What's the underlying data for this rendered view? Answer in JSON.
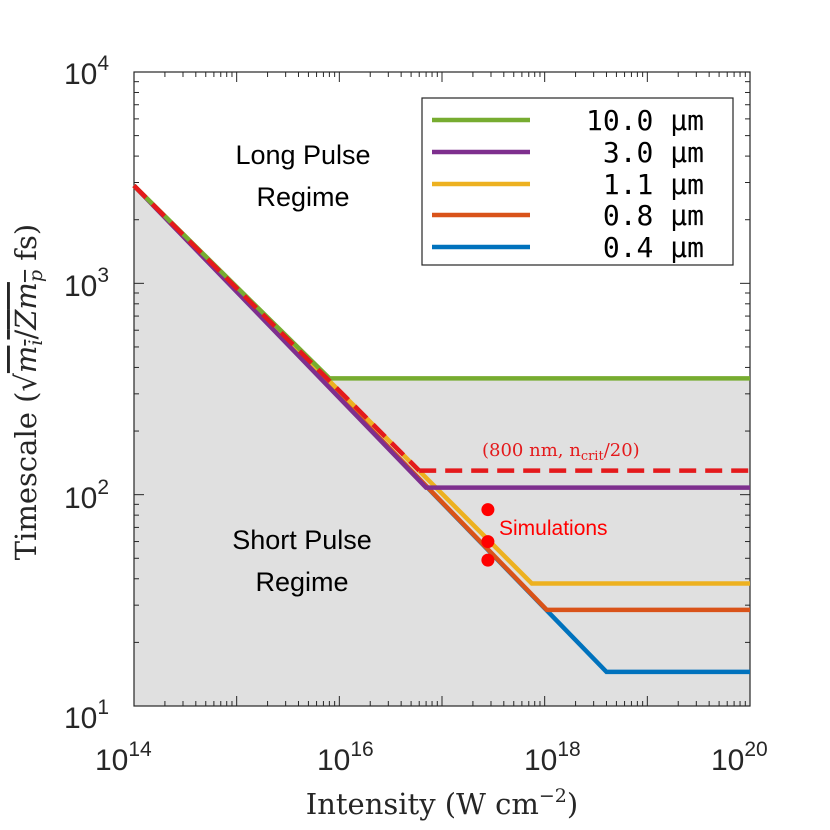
{
  "chart_data": {
    "type": "line",
    "xscale": "log",
    "yscale": "log",
    "xlim": [
      100000000000000.0,
      1e+20
    ],
    "ylim": [
      10,
      10000
    ],
    "xlabel": "Intensity (W cm",
    "xlabel_exp": "−2",
    "xlabel_close": ")",
    "ylabel_prefix": "Timescale (",
    "ylabel_radicand": "m",
    "ylabel_sub_i": "i",
    "ylabel_slash": "/",
    "ylabel_Z": "Z",
    "ylabel_m": "m",
    "ylabel_sub_p": "p",
    "ylabel_suffix": " fs)",
    "x_ticks": [
      {
        "value": 100000000000000.0,
        "base": "10",
        "exp": "14"
      },
      {
        "value": 1e+16,
        "base": "10",
        "exp": "16"
      },
      {
        "value": 1e+18,
        "base": "10",
        "exp": "18"
      },
      {
        "value": 1e+20,
        "base": "10",
        "exp": "20"
      }
    ],
    "y_ticks": [
      {
        "value": 10,
        "base": "10",
        "exp": "1"
      },
      {
        "value": 100,
        "base": "10",
        "exp": "2"
      },
      {
        "value": 1000,
        "base": "10",
        "exp": "3"
      },
      {
        "value": 10000,
        "base": "10",
        "exp": "4"
      }
    ],
    "series": [
      {
        "name": "10.0 μm",
        "color": "#77ac30",
        "points": [
          [
            100000000000000.0,
            2900
          ],
          [
            8000000000000000.0,
            355
          ],
          [
            1e+20,
            355
          ]
        ]
      },
      {
        "name": "3.0 μm",
        "color": "#7e2f8e",
        "points": [
          [
            100000000000000.0,
            2900
          ],
          [
            7e+16,
            108
          ],
          [
            1e+20,
            108
          ]
        ]
      },
      {
        "name": "1.1 μm",
        "color": "#edb120",
        "points": [
          [
            100000000000000.0,
            2900
          ],
          [
            7.5e+17,
            38
          ],
          [
            1e+20,
            38
          ]
        ]
      },
      {
        "name": "0.8 μm",
        "color": "#d95319",
        "points": [
          [
            100000000000000.0,
            2900
          ],
          [
            1.05e+18,
            28.5
          ],
          [
            1e+20,
            28.5
          ]
        ]
      },
      {
        "name": "0.4 μm",
        "color": "#0072bd",
        "points": [
          [
            100000000000000.0,
            2900
          ],
          [
            4e+18,
            14.5
          ],
          [
            1e+20,
            14.5
          ]
        ]
      }
    ],
    "dashed": {
      "color": "#e41a1c",
      "diagonal": [
        [
          100000000000000.0,
          2900
        ],
        [
          6e+16,
          130
        ]
      ],
      "horizontal": [
        [
          6e+16,
          130
        ],
        [
          1e+20,
          130
        ]
      ],
      "label": "(800 nm, n",
      "label_sub": "crit",
      "label_end": "/20)"
    },
    "simulations": {
      "name": "Simulations",
      "color": "#ff0000",
      "points": [
        [
          2.8e+17,
          85
        ],
        [
          2.8e+17,
          60
        ],
        [
          2.8e+17,
          49
        ]
      ]
    },
    "annotations": {
      "long_line1": "Long Pulse",
      "long_line2": "Regime",
      "short_line1": "Short Pulse",
      "short_line2": "Regime"
    },
    "legend": {
      "position": "top-right",
      "entries": [
        "10.0 μm",
        "3.0 μm",
        "1.1 μm",
        "0.8 μm",
        "0.4 μm"
      ]
    },
    "shaded_region": {
      "color": "#e0e0e0"
    }
  }
}
